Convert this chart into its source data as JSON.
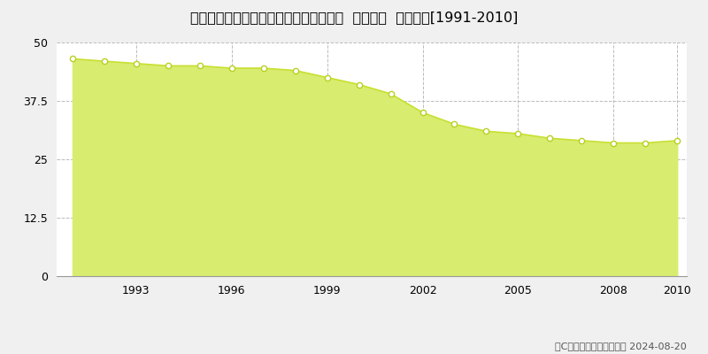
{
  "title": "兵庫県高砂市荒井町蓮池１丁目４番５外  地価公示  地価推移[1991-2010]",
  "years": [
    1991,
    1992,
    1993,
    1994,
    1995,
    1996,
    1997,
    1998,
    1999,
    2000,
    2001,
    2002,
    2003,
    2004,
    2005,
    2006,
    2007,
    2008,
    2009,
    2010
  ],
  "values": [
    46.5,
    46.0,
    45.5,
    45.0,
    45.0,
    44.5,
    44.5,
    44.0,
    42.5,
    41.0,
    39.0,
    35.0,
    32.5,
    31.0,
    30.5,
    29.5,
    29.0,
    28.5,
    28.5,
    29.0
  ],
  "line_color": "#c8e030",
  "fill_color": "#d8ec70",
  "marker_color": "#ffffff",
  "marker_edge_color": "#b8d020",
  "background_color": "#f0f0f0",
  "plot_bg_color": "#ffffff",
  "grid_color": "#bbbbbb",
  "ylim": [
    0,
    50
  ],
  "yticks": [
    0,
    12.5,
    25,
    37.5,
    50
  ],
  "xlabel_ticks": [
    1993,
    1996,
    1999,
    2002,
    2005,
    2008,
    2010
  ],
  "legend_marker_color": "#c8e030",
  "copyright_text": "（C）土地価格ドットコム 2024-08-20",
  "title_fontsize": 11.5,
  "tick_fontsize": 9,
  "legend_fontsize": 9,
  "copyright_fontsize": 8
}
